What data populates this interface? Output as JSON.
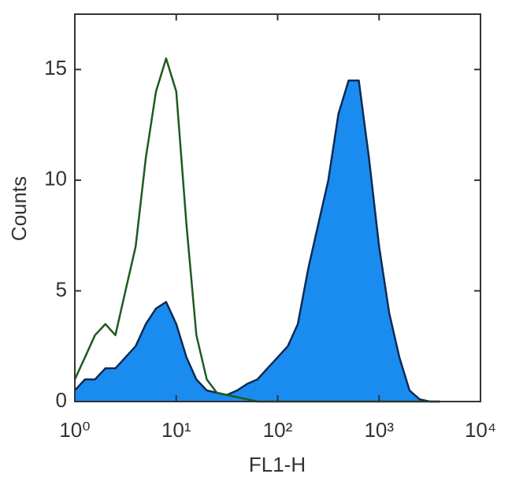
{
  "chart_data": {
    "type": "area",
    "xlabel": "FL1-H",
    "ylabel": "Counts",
    "xscale": "log",
    "xlim": [
      1,
      10000
    ],
    "ylim": [
      0,
      17.5
    ],
    "xticks": [
      {
        "value": 1,
        "label": "10⁰"
      },
      {
        "value": 10,
        "label": "10¹"
      },
      {
        "value": 100,
        "label": "10²"
      },
      {
        "value": 1000,
        "label": "10³"
      },
      {
        "value": 10000,
        "label": "10⁴"
      }
    ],
    "yticks": [
      0,
      5,
      10,
      15
    ],
    "x": [
      1,
      1.26,
      1.58,
      2,
      2.51,
      3.16,
      3.98,
      5.01,
      6.31,
      7.94,
      10,
      12.6,
      15.8,
      20,
      25.1,
      31.6,
      39.8,
      50.1,
      63.1,
      79.4,
      100,
      126,
      158,
      200,
      251,
      316,
      398,
      501,
      631,
      794,
      1000,
      1259,
      1585,
      1995,
      2512,
      3162,
      3981
    ],
    "series": [
      {
        "color": "#1a8cf0",
        "edgecolor": "#0d2a55",
        "fill": true,
        "values": [
          0.5,
          1,
          1,
          1.5,
          1.5,
          2,
          2.5,
          3.5,
          4.2,
          4.5,
          3.5,
          2,
          1,
          0.5,
          0.4,
          0.3,
          0.5,
          0.8,
          1,
          1.5,
          2,
          2.5,
          3.5,
          6,
          8,
          10,
          13,
          14.5,
          14.5,
          11,
          7,
          4,
          2,
          0.5,
          0.1,
          0,
          0
        ]
      },
      {
        "color": "#1f5a1f",
        "fill": false,
        "values": [
          1,
          2,
          3,
          3.5,
          3,
          5,
          7,
          11,
          14,
          15.5,
          14,
          8,
          3,
          1,
          0.4,
          0.3,
          0.2,
          0.1,
          0,
          0,
          0,
          0,
          0,
          0,
          0,
          0,
          0,
          0,
          0,
          0,
          0,
          0,
          0,
          0,
          0,
          0,
          0
        ]
      }
    ]
  }
}
